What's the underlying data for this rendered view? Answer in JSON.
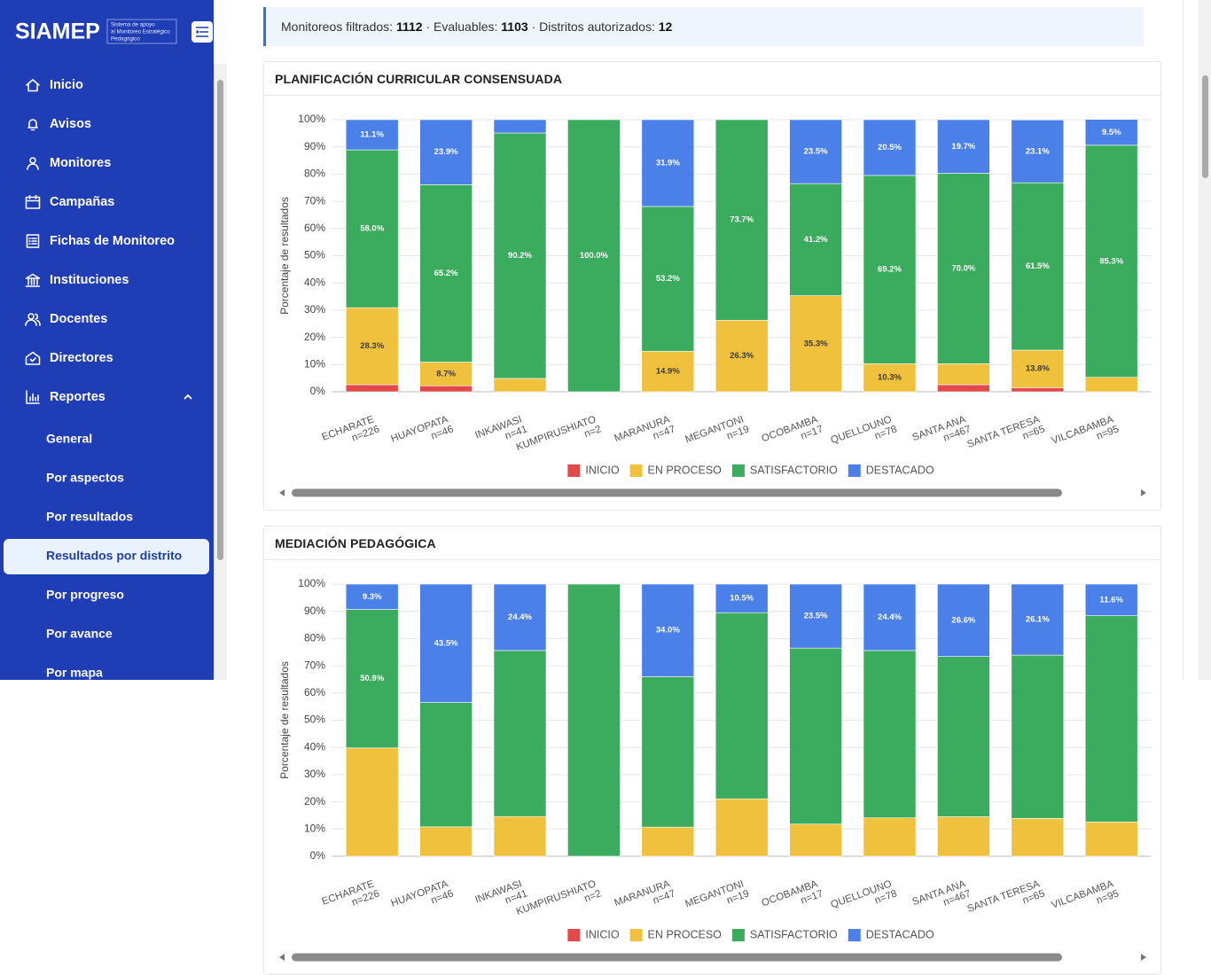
{
  "sidebar": {
    "logo": "SIAMEP",
    "logo_subtitle": [
      "Sistema de apoyo",
      "al Monitoreo Estratégico",
      "Pedagógico"
    ],
    "menu": [
      "Inicio",
      "Avisos",
      "Monitores",
      "Campañas",
      "Fichas de Monitoreo",
      "Instituciones",
      "Docentes",
      "Directores",
      "Reportes"
    ],
    "submenu": [
      "General",
      "Por aspectos",
      "Por resultados",
      "Resultados por distrito",
      "Por progreso",
      "Por avance",
      "Por mapa"
    ],
    "active_submenu": 3
  },
  "summary": {
    "items": [
      {
        "label": "Monitoreos filtrados:",
        "value": 1112
      },
      {
        "label": "Evaluables:",
        "value": 1103
      },
      {
        "label": "Distritos autorizados:",
        "value": 12
      }
    ],
    "separator": "·"
  },
  "chart_data": [
    {
      "type": "bar",
      "stacked": true,
      "title": "PLANIFICACIÓN CURRICULAR CONSENSUADA",
      "ylabel": "Porcentaje de resultados",
      "categories": [
        [
          "ECHARATE",
          "n=226"
        ],
        [
          "HUAYOPATA",
          "n=46"
        ],
        [
          "INKAWASI",
          "n=41"
        ],
        [
          "KUMPIRUSHIATO",
          "n=2"
        ],
        [
          "MARANURA",
          "n=47"
        ],
        [
          "MEGANTONI",
          "n=19"
        ],
        [
          "OCOBAMBA",
          "n=17"
        ],
        [
          "QUELLOUNO",
          "n=78"
        ],
        [
          "SANTA ANA",
          "n=467"
        ],
        [
          "SANTA TERESA",
          "n=65"
        ],
        [
          "VILCABAMBA",
          "n=95"
        ]
      ],
      "series": [
        {
          "name": "INICIO",
          "color": "#e24a4a",
          "label_color": "#ffffff",
          "values": [
            2.6,
            2.2,
            0,
            0,
            0,
            0,
            0,
            0,
            2.6,
            1.5,
            0
          ],
          "value_labels": [
            null,
            null,
            null,
            null,
            null,
            null,
            null,
            null,
            null,
            null,
            null
          ]
        },
        {
          "name": "EN PROCESO",
          "color": "#f0c13c",
          "label_color": "#3a3a3a",
          "values": [
            28.3,
            8.7,
            4.9,
            0,
            14.9,
            26.3,
            35.3,
            10.3,
            7.7,
            13.8,
            5.3
          ],
          "value_labels": [
            "28.3%",
            "8.7%",
            null,
            null,
            "14.9%",
            "26.3%",
            "35.3%",
            "10.3%",
            null,
            "13.8%",
            null
          ]
        },
        {
          "name": "SATISFACTORIO",
          "color": "#3bab5d",
          "label_color": "#ffffff",
          "values": [
            58.0,
            65.2,
            90.2,
            100.0,
            53.2,
            73.7,
            41.2,
            69.2,
            70.0,
            61.5,
            85.3
          ],
          "value_labels": [
            "58.0%",
            "65.2%",
            "90.2%",
            "100.0%",
            "53.2%",
            "73.7%",
            "41.2%",
            "69.2%",
            "70.0%",
            "61.5%",
            "85.3%"
          ]
        },
        {
          "name": "DESTACADO",
          "color": "#4a80e8",
          "label_color": "#ffffff",
          "values": [
            11.1,
            23.9,
            4.9,
            0,
            31.9,
            0,
            23.5,
            20.5,
            19.7,
            23.1,
            9.5
          ],
          "value_labels": [
            "11.1%",
            "23.9%",
            null,
            null,
            "31.9%",
            null,
            "23.5%",
            "20.5%",
            "19.7%",
            "23.1%",
            "9.5%"
          ]
        }
      ],
      "ylim": [
        0,
        100
      ],
      "yticks": [
        {
          "value": 0,
          "label": "0%"
        },
        {
          "value": 10,
          "label": "10%"
        },
        {
          "value": 20,
          "label": "20%"
        },
        {
          "value": 30,
          "label": "30%"
        },
        {
          "value": 40,
          "label": "40%"
        },
        {
          "value": 50,
          "label": "50%"
        },
        {
          "value": 60,
          "label": "60%"
        },
        {
          "value": 70,
          "label": "70%"
        },
        {
          "value": 80,
          "label": "80%"
        },
        {
          "value": 90,
          "label": "90%"
        },
        {
          "value": 100,
          "label": "100%"
        }
      ],
      "grid": true,
      "legend": "bottom"
    },
    {
      "type": "bar",
      "stacked": true,
      "title": "MEDIACIÓN PEDAGÓGICA",
      "ylabel": "Porcentaje de resultados",
      "categories": [
        [
          "ECHARATE",
          "n=226"
        ],
        [
          "HUAYOPATA",
          "n=46"
        ],
        [
          "INKAWASI",
          "n=41"
        ],
        [
          "KUMPIRUSHIATO",
          "n=2"
        ],
        [
          "MARANURA",
          "n=47"
        ],
        [
          "MEGANTONI",
          "n=19"
        ],
        [
          "OCOBAMBA",
          "n=17"
        ],
        [
          "QUELLOUNO",
          "n=78"
        ],
        [
          "SANTA ANA",
          "n=467"
        ],
        [
          "SANTA TERESA",
          "n=65"
        ],
        [
          "VILCABAMBA",
          "n=95"
        ]
      ],
      "series": [
        {
          "name": "INICIO",
          "color": "#e24a4a",
          "label_color": "#ffffff",
          "values": [
            0,
            0,
            0,
            0,
            0,
            0,
            0,
            0,
            0,
            0,
            0
          ],
          "value_labels": [
            null,
            null,
            null,
            null,
            null,
            null,
            null,
            null,
            null,
            null,
            null
          ]
        },
        {
          "name": "EN PROCESO",
          "color": "#f0c13c",
          "label_color": "#3a3a3a",
          "values": [
            39.8,
            10.8,
            14.6,
            0,
            10.7,
            21.1,
            11.8,
            14.1,
            14.5,
            13.9,
            12.6
          ],
          "value_labels": [
            null,
            null,
            null,
            null,
            null,
            null,
            null,
            null,
            null,
            null,
            null
          ]
        },
        {
          "name": "SATISFACTORIO",
          "color": "#3bab5d",
          "label_color": "#ffffff",
          "values": [
            50.9,
            45.7,
            61.0,
            100,
            55.3,
            68.4,
            64.7,
            61.5,
            58.9,
            60.0,
            75.8
          ],
          "value_labels": [
            "50.9%",
            null,
            null,
            null,
            null,
            null,
            null,
            null,
            null,
            null,
            null
          ]
        },
        {
          "name": "DESTACADO",
          "color": "#4a80e8",
          "label_color": "#ffffff",
          "values": [
            9.3,
            43.5,
            24.4,
            0,
            34.0,
            10.5,
            23.5,
            24.4,
            26.6,
            26.1,
            11.6
          ],
          "value_labels": [
            "9.3%",
            "43.5%",
            "24.4%",
            null,
            "34.0%",
            "10.5%",
            "23.5%",
            "24.4%",
            "26.6%",
            "26.1%",
            "11.6%"
          ]
        }
      ],
      "ylim": [
        0,
        100
      ],
      "yticks": [
        {
          "value": 0,
          "label": "0%"
        },
        {
          "value": 10,
          "label": "10%"
        },
        {
          "value": 20,
          "label": "20%"
        },
        {
          "value": 30,
          "label": "30%"
        },
        {
          "value": 40,
          "label": "40%"
        },
        {
          "value": 50,
          "label": "50%"
        },
        {
          "value": 60,
          "label": "60%"
        },
        {
          "value": 70,
          "label": "70%"
        },
        {
          "value": 80,
          "label": "80%"
        },
        {
          "value": 90,
          "label": "90%"
        },
        {
          "value": 100,
          "label": "100%"
        }
      ],
      "grid": true,
      "legend": "bottom"
    }
  ]
}
